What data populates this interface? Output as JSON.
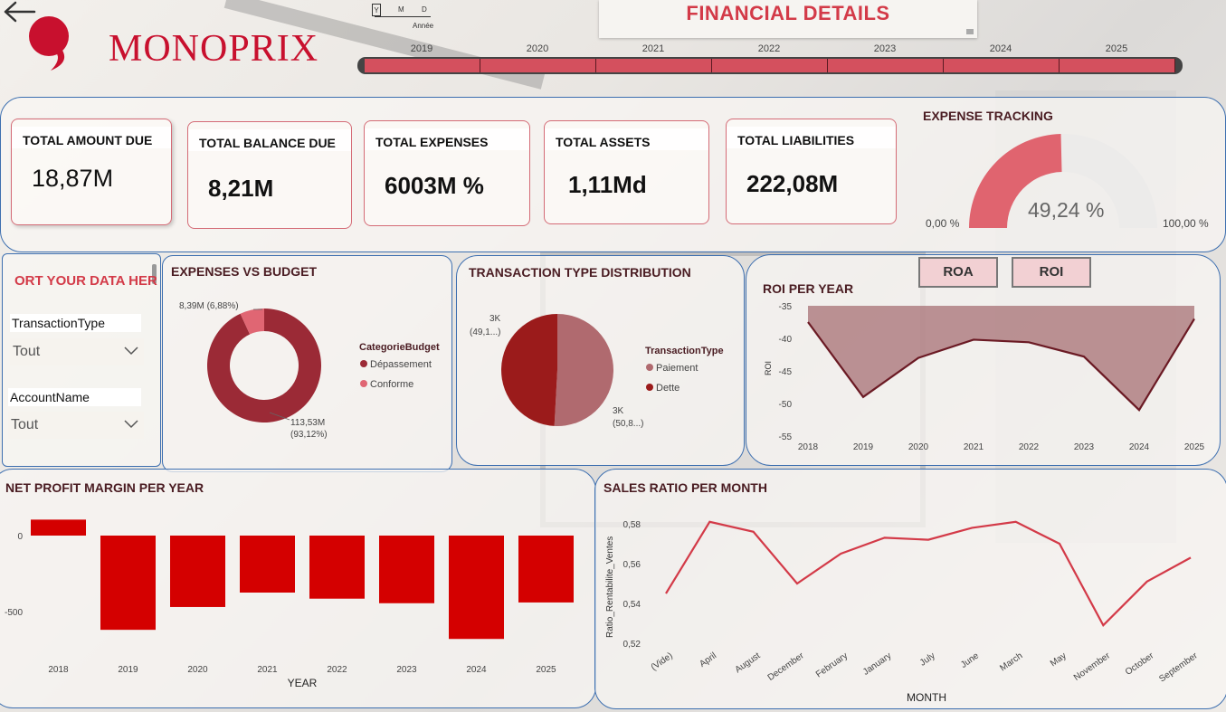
{
  "header": {
    "logo_text": "MONOPRIX",
    "title": "FINANCIAL DETAILS",
    "date_hierarchy": {
      "y": "Y",
      "m": "M",
      "d": "D",
      "label": "Année"
    },
    "timeline_years": [
      "2019",
      "2020",
      "2021",
      "2022",
      "2023",
      "2024",
      "2025"
    ]
  },
  "kpis": [
    {
      "label": "TOTAL AMOUNT DUE",
      "value": "18,87M"
    },
    {
      "label": "TOTAL BALANCE DUE",
      "value": "8,21M"
    },
    {
      "label": "TOTAL EXPENSES",
      "value": "6003M %"
    },
    {
      "label": "TOTAL ASSETS",
      "value": "1,11Md"
    },
    {
      "label": "TOTAL LIABILITIES",
      "value": "222,08M"
    }
  ],
  "expense_tracking": {
    "title": "EXPENSE TRACKING",
    "value_label": "49,24 %",
    "value": 0.4924,
    "min_label": "0,00 %",
    "max_label": "100,00 %"
  },
  "filters": {
    "title": "ORT YOUR DATA HER",
    "transaction_type": {
      "label": "TransactionType",
      "value": "Tout"
    },
    "account_name": {
      "label": "AccountName",
      "value": "Tout"
    }
  },
  "expenses_vs_budget": {
    "title": "EXPENSES VS BUDGET",
    "legend_title": "CategorieBudget",
    "slice_labels": [
      "8,39M (6,88%)",
      "113,53M",
      "(93,12%)"
    ]
  },
  "transaction_type_distribution": {
    "title": "TRANSACTION TYPE DISTRIBUTION",
    "legend_title": "TransactionType",
    "slice_labels": [
      "3K",
      "(49,1...)",
      "3K",
      "(50,8...)"
    ]
  },
  "roi": {
    "buttons": {
      "roa": "ROA",
      "roi": "ROI"
    }
  },
  "net_profit": {
    "title": "NET PROFIT MARGIN PER YEAR"
  },
  "sales_ratio": {
    "title": "SALES RATIO PER MONTH"
  },
  "colors": {
    "accent": "#d33a48",
    "brand_red": "#c8102e",
    "dark_red": "#9b1b26",
    "bar_red": "#d40000",
    "maroon": "#6b1a24",
    "panel_border": "#3d6fb0"
  },
  "chart_data": [
    {
      "id": "expenses_vs_budget",
      "type": "pie",
      "title": "EXPENSES VS BUDGET",
      "legend_title": "CategorieBudget",
      "labels": [
        "Dépassement",
        "Conforme"
      ],
      "values": [
        113.53,
        8.39
      ],
      "percents": [
        93.12,
        6.88
      ],
      "colors": [
        "#9b2a36",
        "#e06673"
      ]
    },
    {
      "id": "transaction_type_distribution",
      "type": "pie",
      "title": "TRANSACTION TYPE DISTRIBUTION",
      "legend_title": "TransactionType",
      "labels": [
        "Paiement",
        "Dette"
      ],
      "percents": [
        50.8,
        49.1
      ],
      "colors": [
        "#b06a6f",
        "#9b1b1b"
      ]
    },
    {
      "id": "roi_per_year",
      "type": "area",
      "title": "ROI PER YEAR",
      "ylabel": "ROI",
      "x": [
        "2018",
        "2019",
        "2020",
        "2021",
        "2022",
        "2023",
        "2024",
        "2025"
      ],
      "values": [
        -37.5,
        -49,
        -43,
        -40.2,
        -40.6,
        -42.8,
        -51,
        -37
      ],
      "ylim": [
        -55,
        -35
      ],
      "yticks": [
        -35,
        -40,
        -45,
        -50,
        -55
      ],
      "grid": false
    },
    {
      "id": "net_profit_margin",
      "type": "bar",
      "title": "NET PROFIT MARGIN PER YEAR",
      "xlabel": "YEAR",
      "categories": [
        "2018",
        "2019",
        "2020",
        "2021",
        "2022",
        "2023",
        "2024",
        "2025"
      ],
      "values": [
        105,
        -620,
        -470,
        -375,
        -415,
        -445,
        -680,
        -440
      ],
      "yticks": [
        0,
        -500
      ]
    },
    {
      "id": "sales_ratio_per_month",
      "type": "line",
      "title": "SALES RATIO PER MONTH",
      "xlabel": "MONTH",
      "ylabel": "Ratio_Rentabilite_Ventes",
      "categories": [
        "(Vide)",
        "April",
        "August",
        "December",
        "February",
        "January",
        "July",
        "June",
        "March",
        "May",
        "November",
        "October",
        "September"
      ],
      "values": [
        0.545,
        0.581,
        0.576,
        0.55,
        0.565,
        0.573,
        0.572,
        0.578,
        0.581,
        0.57,
        0.529,
        0.551,
        0.563
      ],
      "ylim": [
        0.52,
        0.585
      ],
      "yticks": [
        0.52,
        0.54,
        0.56,
        0.58
      ],
      "ytick_labels": [
        "0,52",
        "0,54",
        "0,56",
        "0,58"
      ]
    }
  ]
}
